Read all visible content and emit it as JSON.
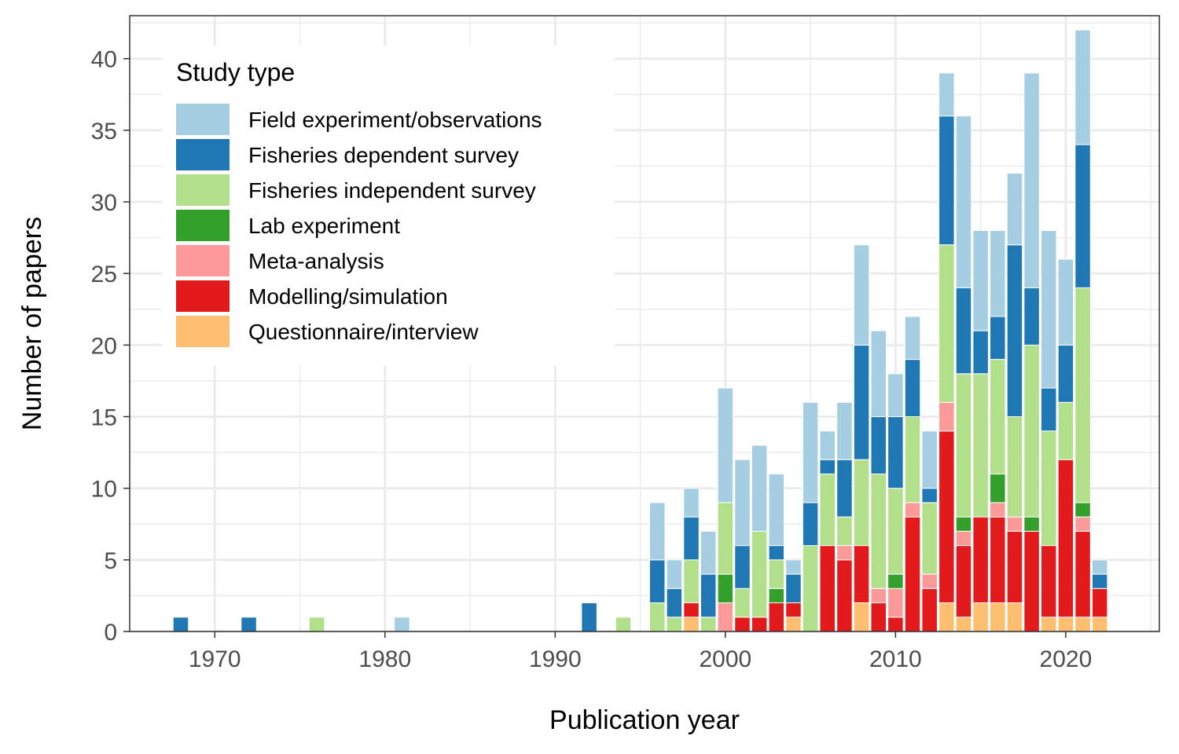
{
  "chart_data": {
    "type": "bar",
    "stacked": true,
    "xlabel": "Publication year",
    "ylabel": "Number of papers",
    "xlim": [
      1965,
      2025.5
    ],
    "ylim": [
      0,
      43
    ],
    "x_ticks": [
      1970,
      1980,
      1990,
      2000,
      2010,
      2020
    ],
    "y_ticks": [
      0,
      5,
      10,
      15,
      20,
      25,
      30,
      35,
      40
    ],
    "grid": true,
    "legend_position": "top-left",
    "legend_title": "Study type",
    "x": [
      1968,
      1972,
      1976,
      1981,
      1992,
      1994,
      1996,
      1997,
      1998,
      1999,
      2000,
      2001,
      2002,
      2003,
      2004,
      2005,
      2006,
      2007,
      2008,
      2009,
      2010,
      2011,
      2012,
      2013,
      2014,
      2015,
      2016,
      2017,
      2018,
      2019,
      2020,
      2021,
      2022
    ],
    "series": [
      {
        "name": "Questionnaire/interview",
        "color": "#FDBF6F",
        "values": [
          0,
          0,
          0,
          0,
          0,
          0,
          0,
          0,
          1,
          0,
          0,
          0,
          0,
          0,
          1,
          0,
          0,
          0,
          2,
          0,
          0,
          0,
          0,
          2,
          1,
          2,
          2,
          2,
          0,
          1,
          1,
          1,
          1
        ]
      },
      {
        "name": "Modelling/simulation",
        "color": "#E31A1C",
        "values": [
          0,
          0,
          0,
          0,
          0,
          0,
          0,
          0,
          1,
          0,
          0,
          1,
          1,
          2,
          1,
          0,
          6,
          5,
          4,
          2,
          1,
          8,
          3,
          12,
          5,
          6,
          6,
          5,
          7,
          5,
          11,
          6,
          2
        ]
      },
      {
        "name": "Meta-analysis",
        "color": "#FB9A99",
        "values": [
          0,
          0,
          0,
          0,
          0,
          0,
          0,
          0,
          0,
          0,
          2,
          0,
          0,
          0,
          0,
          0,
          0,
          1,
          0,
          1,
          2,
          1,
          1,
          2,
          1,
          0,
          1,
          1,
          0,
          0,
          0,
          1,
          0
        ]
      },
      {
        "name": "Lab experiment",
        "color": "#33A02C",
        "values": [
          0,
          0,
          0,
          0,
          0,
          0,
          0,
          0,
          0,
          0,
          2,
          0,
          0,
          1,
          0,
          0,
          0,
          0,
          0,
          0,
          1,
          0,
          0,
          0,
          1,
          0,
          2,
          0,
          1,
          0,
          0,
          1,
          0
        ]
      },
      {
        "name": "Fisheries independent survey",
        "color": "#B2DF8A",
        "values": [
          0,
          0,
          1,
          0,
          0,
          1,
          2,
          1,
          3,
          1,
          5,
          2,
          6,
          2,
          0,
          6,
          5,
          2,
          6,
          8,
          6,
          6,
          5,
          11,
          10,
          10,
          8,
          7,
          12,
          8,
          4,
          15,
          0
        ]
      },
      {
        "name": "Fisheries dependent survey",
        "color": "#1F78B4",
        "values": [
          1,
          1,
          0,
          0,
          2,
          0,
          3,
          2,
          3,
          3,
          0,
          3,
          0,
          1,
          2,
          3,
          1,
          4,
          8,
          4,
          5,
          4,
          1,
          9,
          6,
          3,
          3,
          12,
          4,
          3,
          4,
          10,
          1
        ]
      },
      {
        "name": "Field experiment/observations",
        "color": "#A6CEE3",
        "values": [
          0,
          0,
          0,
          1,
          0,
          0,
          4,
          2,
          2,
          3,
          8,
          6,
          6,
          5,
          1,
          7,
          2,
          4,
          7,
          6,
          3,
          3,
          4,
          3,
          12,
          7,
          6,
          5,
          15,
          11,
          6,
          8,
          1
        ]
      }
    ]
  }
}
